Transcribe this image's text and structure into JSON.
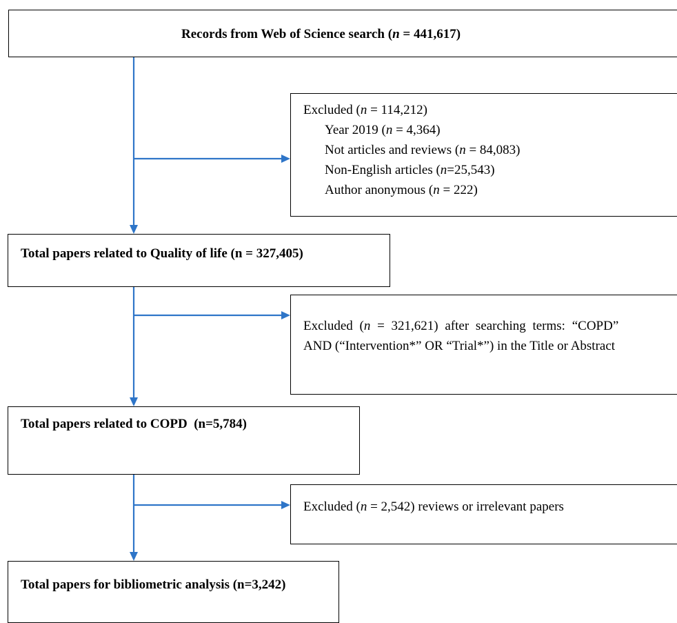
{
  "colors": {
    "arrow": "#2e75c8",
    "border": "#000000",
    "text": "#000000",
    "background": "#ffffff"
  },
  "boxes": {
    "records": {
      "pre": "Records from Web of Science search (",
      "n": "n",
      "post": " = 441,617)"
    },
    "exclusion1": {
      "title": {
        "pre": "Excluded (",
        "n": "n",
        "post": " = 114,212)"
      },
      "items": [
        {
          "pre": "Year 2019 (",
          "n": "n",
          "post": " = 4,364)"
        },
        {
          "pre": "Not articles and reviews (",
          "n": "n",
          "post": " = 84,083)"
        },
        {
          "pre": "Non-English articles (",
          "n": "n",
          "post": "=25,543)"
        },
        {
          "pre": "Author anonymous (",
          "n": "n",
          "post": " = 222)"
        }
      ]
    },
    "qol": {
      "text": "Total papers related to Quality of life (n = 327,405)"
    },
    "exclusion2": {
      "line1": {
        "pre": "Excluded (",
        "n": "n",
        "post": " = 321,621) after searching terms: “COPD”"
      },
      "line2": "AND (“Intervention*” OR “Trial*”) in the Title or Abstract"
    },
    "copd": {
      "text": "Total papers related to COPD  (n=5,784)"
    },
    "exclusion3": {
      "pre": "Excluded (",
      "n": "n",
      "post": " = 2,542) reviews or irrelevant papers"
    },
    "final": {
      "text": "Total papers for bibliometric analysis (n=3,242)"
    }
  }
}
